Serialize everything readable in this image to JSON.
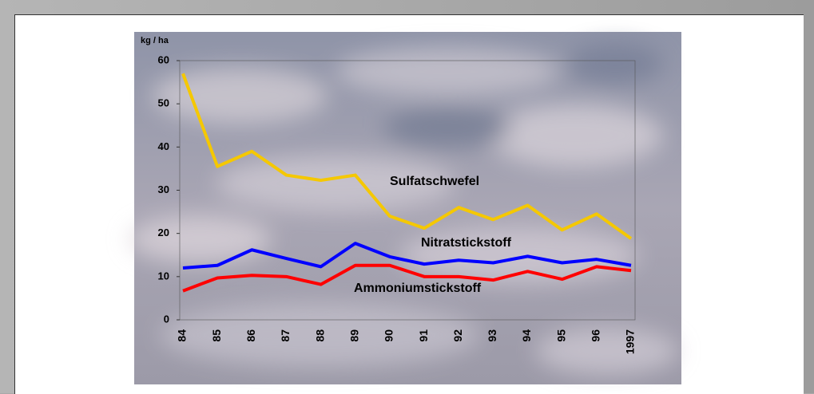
{
  "chart_data": {
    "type": "line",
    "y_label": "kg / ha",
    "categories": [
      "84",
      "85",
      "86",
      "87",
      "88",
      "89",
      "90",
      "91",
      "92",
      "93",
      "94",
      "95",
      "96",
      "1997"
    ],
    "series": [
      {
        "name": "Sulfatschwefel",
        "color": "#f5c800",
        "values": [
          57,
          35.5,
          39,
          33.5,
          32.3,
          33.5,
          24,
          21.2,
          26,
          23.2,
          26.5,
          20.8,
          24.5,
          18.8
        ]
      },
      {
        "name": "Nitratstickstoff",
        "color": "#0000ff",
        "values": [
          12,
          12.6,
          16.2,
          14.2,
          12.3,
          17.7,
          14.6,
          12.9,
          13.8,
          13.2,
          14.7,
          13.2,
          14,
          12.6
        ]
      },
      {
        "name": "Ammoniumstickstoff",
        "color": "#ff0000",
        "values": [
          6.7,
          9.7,
          10.3,
          10,
          8.2,
          12.6,
          12.6,
          10,
          10,
          9.2,
          11.2,
          9.4,
          12.3,
          11.4
        ]
      }
    ],
    "ylim": [
      0,
      60
    ],
    "yticks": [
      0,
      10,
      20,
      30,
      40,
      50,
      60
    ],
    "grid": false
  }
}
